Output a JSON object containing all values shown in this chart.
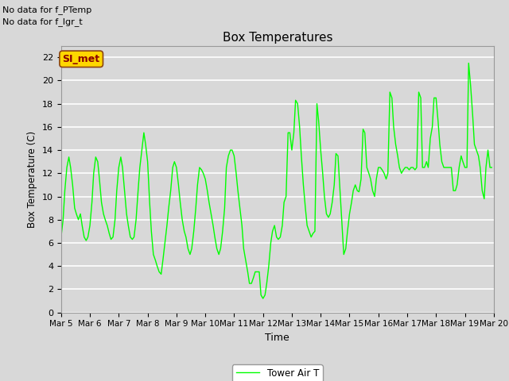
{
  "title": "Box Temperatures",
  "xlabel": "Time",
  "ylabel": "Box Temperature (C)",
  "line_color": "#00FF00",
  "line_label": "Tower Air T",
  "bg_color": "#D8D8D8",
  "no_data_texts": [
    "No data for f_PTemp",
    "No data for f_lgr_t"
  ],
  "si_met_label": "SI_met",
  "ylim": [
    0,
    23
  ],
  "yticks": [
    0,
    2,
    4,
    6,
    8,
    10,
    12,
    14,
    16,
    18,
    20,
    22
  ],
  "xtick_labels": [
    "Mar 5",
    "Mar 6",
    "Mar 7",
    "Mar 8",
    "Mar 9",
    "Mar 10",
    "Mar 11",
    "Mar 12",
    "Mar 13",
    "Mar 14",
    "Mar 15",
    "Mar 16",
    "Mar 17",
    "Mar 18",
    "Mar 19",
    "Mar 20"
  ],
  "time_values": [
    5,
    6,
    7,
    8,
    9,
    10,
    11,
    12,
    13,
    14,
    15,
    16,
    17,
    18,
    19,
    20
  ],
  "data_x": [
    5.0,
    5.07,
    5.13,
    5.2,
    5.27,
    5.33,
    5.4,
    5.47,
    5.53,
    5.6,
    5.67,
    5.73,
    5.8,
    5.87,
    5.93,
    6.0,
    6.07,
    6.13,
    6.2,
    6.27,
    6.33,
    6.4,
    6.47,
    6.53,
    6.6,
    6.67,
    6.73,
    6.8,
    6.87,
    6.93,
    7.0,
    7.07,
    7.13,
    7.2,
    7.27,
    7.33,
    7.4,
    7.47,
    7.53,
    7.6,
    7.67,
    7.73,
    7.8,
    7.87,
    7.93,
    8.0,
    8.07,
    8.13,
    8.2,
    8.27,
    8.33,
    8.4,
    8.47,
    8.53,
    8.6,
    8.67,
    8.73,
    8.8,
    8.87,
    8.93,
    9.0,
    9.07,
    9.13,
    9.2,
    9.27,
    9.33,
    9.4,
    9.47,
    9.53,
    9.6,
    9.67,
    9.73,
    9.8,
    9.87,
    9.93,
    10.0,
    10.07,
    10.13,
    10.2,
    10.27,
    10.33,
    10.4,
    10.47,
    10.53,
    10.6,
    10.67,
    10.73,
    10.8,
    10.87,
    10.93,
    11.0,
    11.07,
    11.13,
    11.2,
    11.27,
    11.33,
    11.4,
    11.47,
    11.53,
    11.6,
    11.67,
    11.73,
    11.8,
    11.87,
    11.93,
    12.0,
    12.07,
    12.13,
    12.2,
    12.27,
    12.33,
    12.4,
    12.47,
    12.53,
    12.6,
    12.67,
    12.73,
    12.8,
    12.87,
    12.93,
    13.0,
    13.07,
    13.13,
    13.2,
    13.27,
    13.33,
    13.4,
    13.47,
    13.53,
    13.6,
    13.67,
    13.73,
    13.8,
    13.87,
    13.93,
    14.0,
    14.07,
    14.13,
    14.2,
    14.27,
    14.33,
    14.4,
    14.47,
    14.53,
    14.6,
    14.67,
    14.73,
    14.8,
    14.87,
    14.93,
    15.0,
    15.07,
    15.13,
    15.2,
    15.27,
    15.33,
    15.4,
    15.47,
    15.53,
    15.6,
    15.67,
    15.73,
    15.8,
    15.87,
    15.93,
    16.0,
    16.07,
    16.13,
    16.2,
    16.27,
    16.33,
    16.4,
    16.47,
    16.53,
    16.6,
    16.67,
    16.73,
    16.8,
    16.87,
    16.93,
    17.0,
    17.07,
    17.13,
    17.2,
    17.27,
    17.33,
    17.4,
    17.47,
    17.53,
    17.6,
    17.67,
    17.73,
    17.8,
    17.87,
    17.93,
    18.0,
    18.07,
    18.13,
    18.2,
    18.27,
    18.33,
    18.4,
    18.47,
    18.53,
    18.6,
    18.67,
    18.73,
    18.8,
    18.87,
    18.93,
    19.0,
    19.07,
    19.13,
    19.2,
    19.27,
    19.33,
    19.4,
    19.47,
    19.53,
    19.6,
    19.67,
    19.73,
    19.8,
    19.87,
    19.93
  ],
  "data_y": [
    6.5,
    8.0,
    10.5,
    12.5,
    13.4,
    12.5,
    11.0,
    9.0,
    8.5,
    8.0,
    8.5,
    7.5,
    6.5,
    6.2,
    6.5,
    7.5,
    9.5,
    12.0,
    13.4,
    13.0,
    11.5,
    9.5,
    8.5,
    8.0,
    7.5,
    6.8,
    6.3,
    6.5,
    8.0,
    10.5,
    12.5,
    13.4,
    12.5,
    10.5,
    8.5,
    7.5,
    6.5,
    6.3,
    6.5,
    8.0,
    10.5,
    12.5,
    14.0,
    15.5,
    14.5,
    13.0,
    9.5,
    7.0,
    5.0,
    4.5,
    4.0,
    3.5,
    3.3,
    4.5,
    6.0,
    7.5,
    9.0,
    10.5,
    12.5,
    13.0,
    12.5,
    11.0,
    9.5,
    8.0,
    7.0,
    6.5,
    5.5,
    5.0,
    5.5,
    7.0,
    9.0,
    11.0,
    12.5,
    12.3,
    12.0,
    11.5,
    10.5,
    9.5,
    8.5,
    7.5,
    6.5,
    5.5,
    5.0,
    5.5,
    7.0,
    9.0,
    12.5,
    13.5,
    14.0,
    14.0,
    13.5,
    12.0,
    10.5,
    9.0,
    7.5,
    5.5,
    4.5,
    3.5,
    2.5,
    2.5,
    3.0,
    3.5,
    3.5,
    3.5,
    1.5,
    1.2,
    1.5,
    2.5,
    4.0,
    6.0,
    7.0,
    7.5,
    6.5,
    6.3,
    6.5,
    7.5,
    9.5,
    10.0,
    15.5,
    15.5,
    14.0,
    15.5,
    18.3,
    18.0,
    16.0,
    13.5,
    11.0,
    9.0,
    7.5,
    7.0,
    6.5,
    6.8,
    7.0,
    18.0,
    16.5,
    14.0,
    12.0,
    10.0,
    8.5,
    8.2,
    8.5,
    9.5,
    11.0,
    13.7,
    13.5,
    10.5,
    8.0,
    5.0,
    5.5,
    7.0,
    8.5,
    9.5,
    10.5,
    11.0,
    10.5,
    10.4,
    11.5,
    15.8,
    15.5,
    12.5,
    12.0,
    11.5,
    10.5,
    10.0,
    11.5,
    12.5,
    12.5,
    12.3,
    12.0,
    11.5,
    12.0,
    19.0,
    18.5,
    16.0,
    14.5,
    13.5,
    12.5,
    12.0,
    12.3,
    12.5,
    12.5,
    12.3,
    12.5,
    12.5,
    12.3,
    12.5,
    19.0,
    18.5,
    12.5,
    12.5,
    13.0,
    12.5,
    15.0,
    16.0,
    18.5,
    18.5,
    16.5,
    14.5,
    13.0,
    12.5,
    12.5,
    12.5,
    12.5,
    12.5,
    10.5,
    10.5,
    11.0,
    12.5,
    13.5,
    13.0,
    12.5,
    12.5,
    21.5,
    19.5,
    17.0,
    14.5,
    14.0,
    13.5,
    12.5,
    10.5,
    9.8,
    12.5,
    14.0,
    12.5,
    12.5
  ]
}
